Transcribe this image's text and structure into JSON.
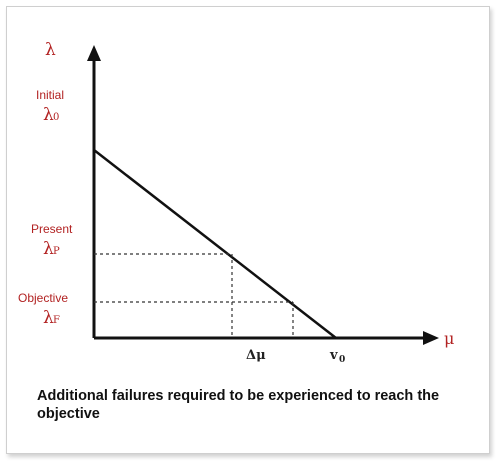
{
  "diagram": {
    "y_axis_symbol": "λ",
    "x_axis_symbol": "μ",
    "labels": [
      {
        "id": "initial",
        "word": "Initial",
        "symbol": "λ",
        "sub": "0"
      },
      {
        "id": "present",
        "word": "Present",
        "symbol": "λ",
        "sub": "P"
      },
      {
        "id": "objective",
        "word": "Objective",
        "symbol": "λ",
        "sub": "F"
      }
    ],
    "x_ticks": {
      "delta_mu": "Δμ",
      "v0_main": "v",
      "v0_sub": "0"
    },
    "caption": "Additional failures required to be experienced to reach the objective"
  },
  "colors": {
    "label": "#b22222",
    "line": "#111111"
  }
}
